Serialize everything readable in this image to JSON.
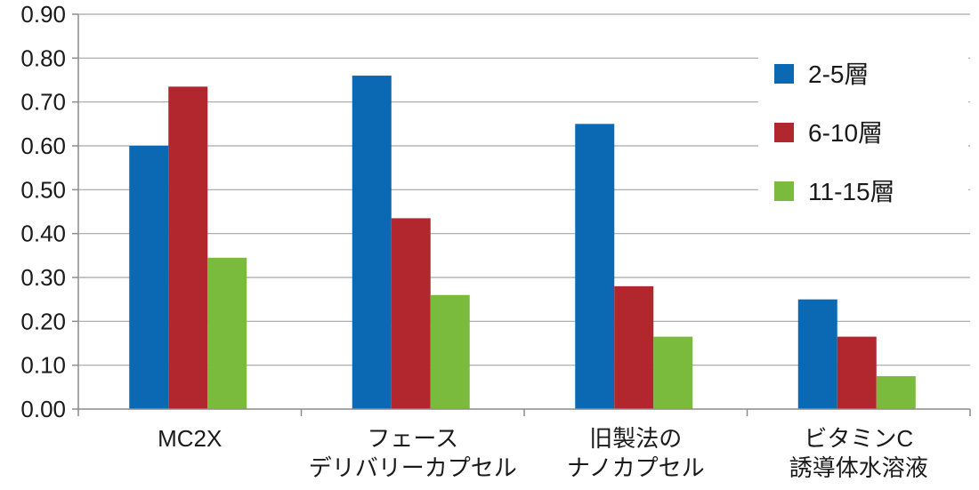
{
  "chart_data": {
    "type": "bar",
    "title": "",
    "xlabel": "",
    "ylabel": "",
    "ylim": [
      0,
      0.9
    ],
    "yticks": [
      "0.00",
      "0.10",
      "0.20",
      "0.30",
      "0.40",
      "0.50",
      "0.60",
      "0.70",
      "0.80",
      "0.90"
    ],
    "grid": true,
    "legend_position": "top-right",
    "categories": [
      [
        "MC2X"
      ],
      [
        "フェース",
        "デリバリーカプセル"
      ],
      [
        "旧製法の",
        "ナノカプセル"
      ],
      [
        "ビタミンC",
        "誘導体水溶液"
      ]
    ],
    "series": [
      {
        "name": "2-5層",
        "color": "#0a69b2",
        "values": [
          0.6,
          0.76,
          0.65,
          0.25
        ]
      },
      {
        "name": "6-10層",
        "color": "#b2262e",
        "values": [
          0.735,
          0.435,
          0.28,
          0.165
        ]
      },
      {
        "name": "11-15層",
        "color": "#7aba3c",
        "values": [
          0.345,
          0.26,
          0.165,
          0.075
        ]
      }
    ]
  }
}
